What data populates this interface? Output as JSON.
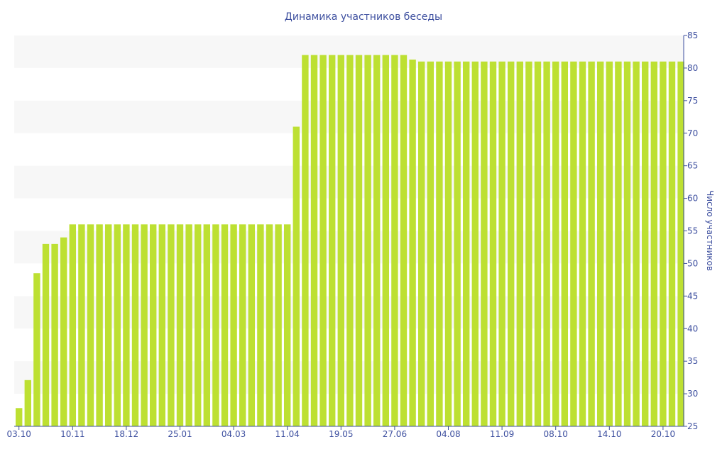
{
  "chart_data": {
    "type": "bar",
    "title": "Динамика участников беседы",
    "xlabel": "",
    "ylabel": "Число участников",
    "ylim": [
      25,
      85
    ],
    "yticks": [
      25,
      30,
      35,
      40,
      45,
      50,
      55,
      60,
      65,
      70,
      75,
      80,
      85
    ],
    "grid": "alternating horizontal bands",
    "y_axis_side": "right",
    "x_tick_labels": [
      "03.10",
      "10.11",
      "18.12",
      "25.01",
      "04.03",
      "11.04",
      "19.05",
      "27.06",
      "04.08",
      "11.09",
      "08.10",
      "14.10",
      "20.10"
    ],
    "x_tick_every": 6,
    "bar_color": "#bde032",
    "axis_color": "#3d4f9f",
    "values": [
      27.8,
      32.1,
      48.5,
      53,
      53,
      54,
      56,
      56,
      56,
      56,
      56,
      56,
      56,
      56,
      56,
      56,
      56,
      56,
      56,
      56,
      56,
      56,
      56,
      56,
      56,
      56,
      56,
      56,
      56,
      56,
      56,
      71,
      82,
      82,
      82,
      82,
      82,
      82,
      82,
      82,
      82,
      82,
      82,
      82,
      81.3,
      81,
      81,
      81,
      81,
      81,
      81,
      81,
      81,
      81,
      81,
      81,
      81,
      81,
      81,
      81,
      81,
      81,
      81,
      81,
      81,
      81,
      81,
      81,
      81,
      81,
      81,
      81,
      81,
      81,
      81
    ]
  }
}
